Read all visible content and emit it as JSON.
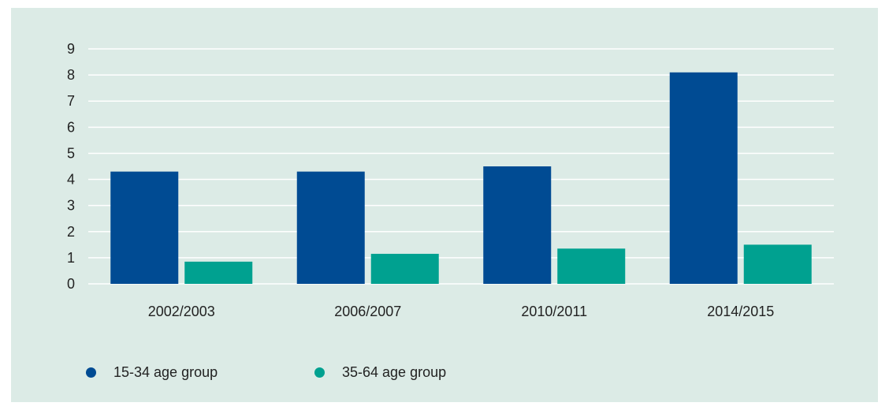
{
  "chart_data": {
    "type": "bar",
    "categories": [
      "2002/2003",
      "2006/2007",
      "2010/2011",
      "2014/2015"
    ],
    "series": [
      {
        "name": "15-34 age group",
        "values": [
          4.3,
          4.3,
          4.5,
          8.1
        ],
        "color": "#004b93"
      },
      {
        "name": "35-64 age group",
        "values": [
          0.85,
          1.15,
          1.35,
          1.5
        ],
        "color": "#00a190"
      }
    ],
    "title": "",
    "xlabel": "",
    "ylabel": "",
    "ylim": [
      0,
      9
    ],
    "yticks": [
      0,
      1,
      2,
      3,
      4,
      5,
      6,
      7,
      8,
      9
    ],
    "grid": true,
    "legend_position": "bottom-left"
  },
  "colors": {
    "background": "#dcebe6",
    "gridline": "#ffffff",
    "text": "#222222"
  }
}
